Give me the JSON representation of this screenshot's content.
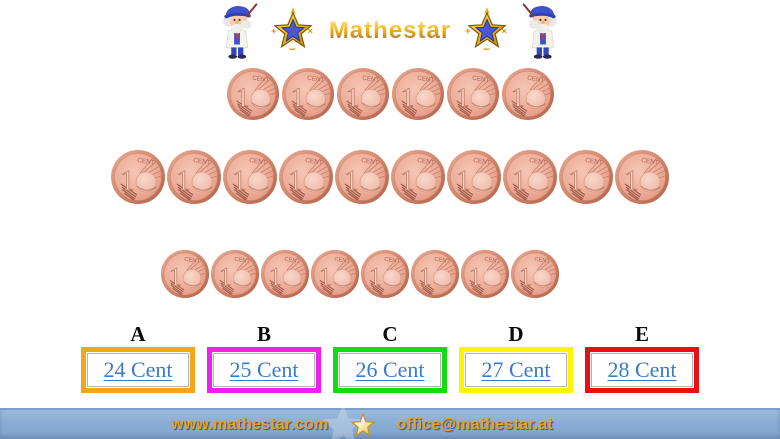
{
  "header": {
    "logo_text": "Mathestar",
    "left_icon": "wizard-with-wand-icon",
    "right_icon": "wizard-with-wand-icon",
    "star_icon": "math-star-logo-icon"
  },
  "coins": {
    "icon": "one-euro-cent-coin-icon",
    "numeral": "1",
    "inscription": "CENT",
    "rows": [
      6,
      10,
      8
    ],
    "coin_color": "#D98D77"
  },
  "options": [
    {
      "letter": "A",
      "label": "24 Cent",
      "border_color": "#F2A71B"
    },
    {
      "letter": "B",
      "label": "25 Cent",
      "border_color": "#EF1FEF"
    },
    {
      "letter": "C",
      "label": "26 Cent",
      "border_color": "#12DD12"
    },
    {
      "letter": "D",
      "label": "27 Cent",
      "border_color": "#FCF400"
    },
    {
      "letter": "E",
      "label": "28 Cent",
      "border_color": "#E81010"
    }
  ],
  "option_text_color": "#3D7BC8",
  "footer": {
    "website": "www.mathestar.com",
    "email": "office@mathestar.at",
    "star_icon": "star-icon",
    "band_color": "#88ACD4",
    "text_color": "#E9A21B"
  }
}
